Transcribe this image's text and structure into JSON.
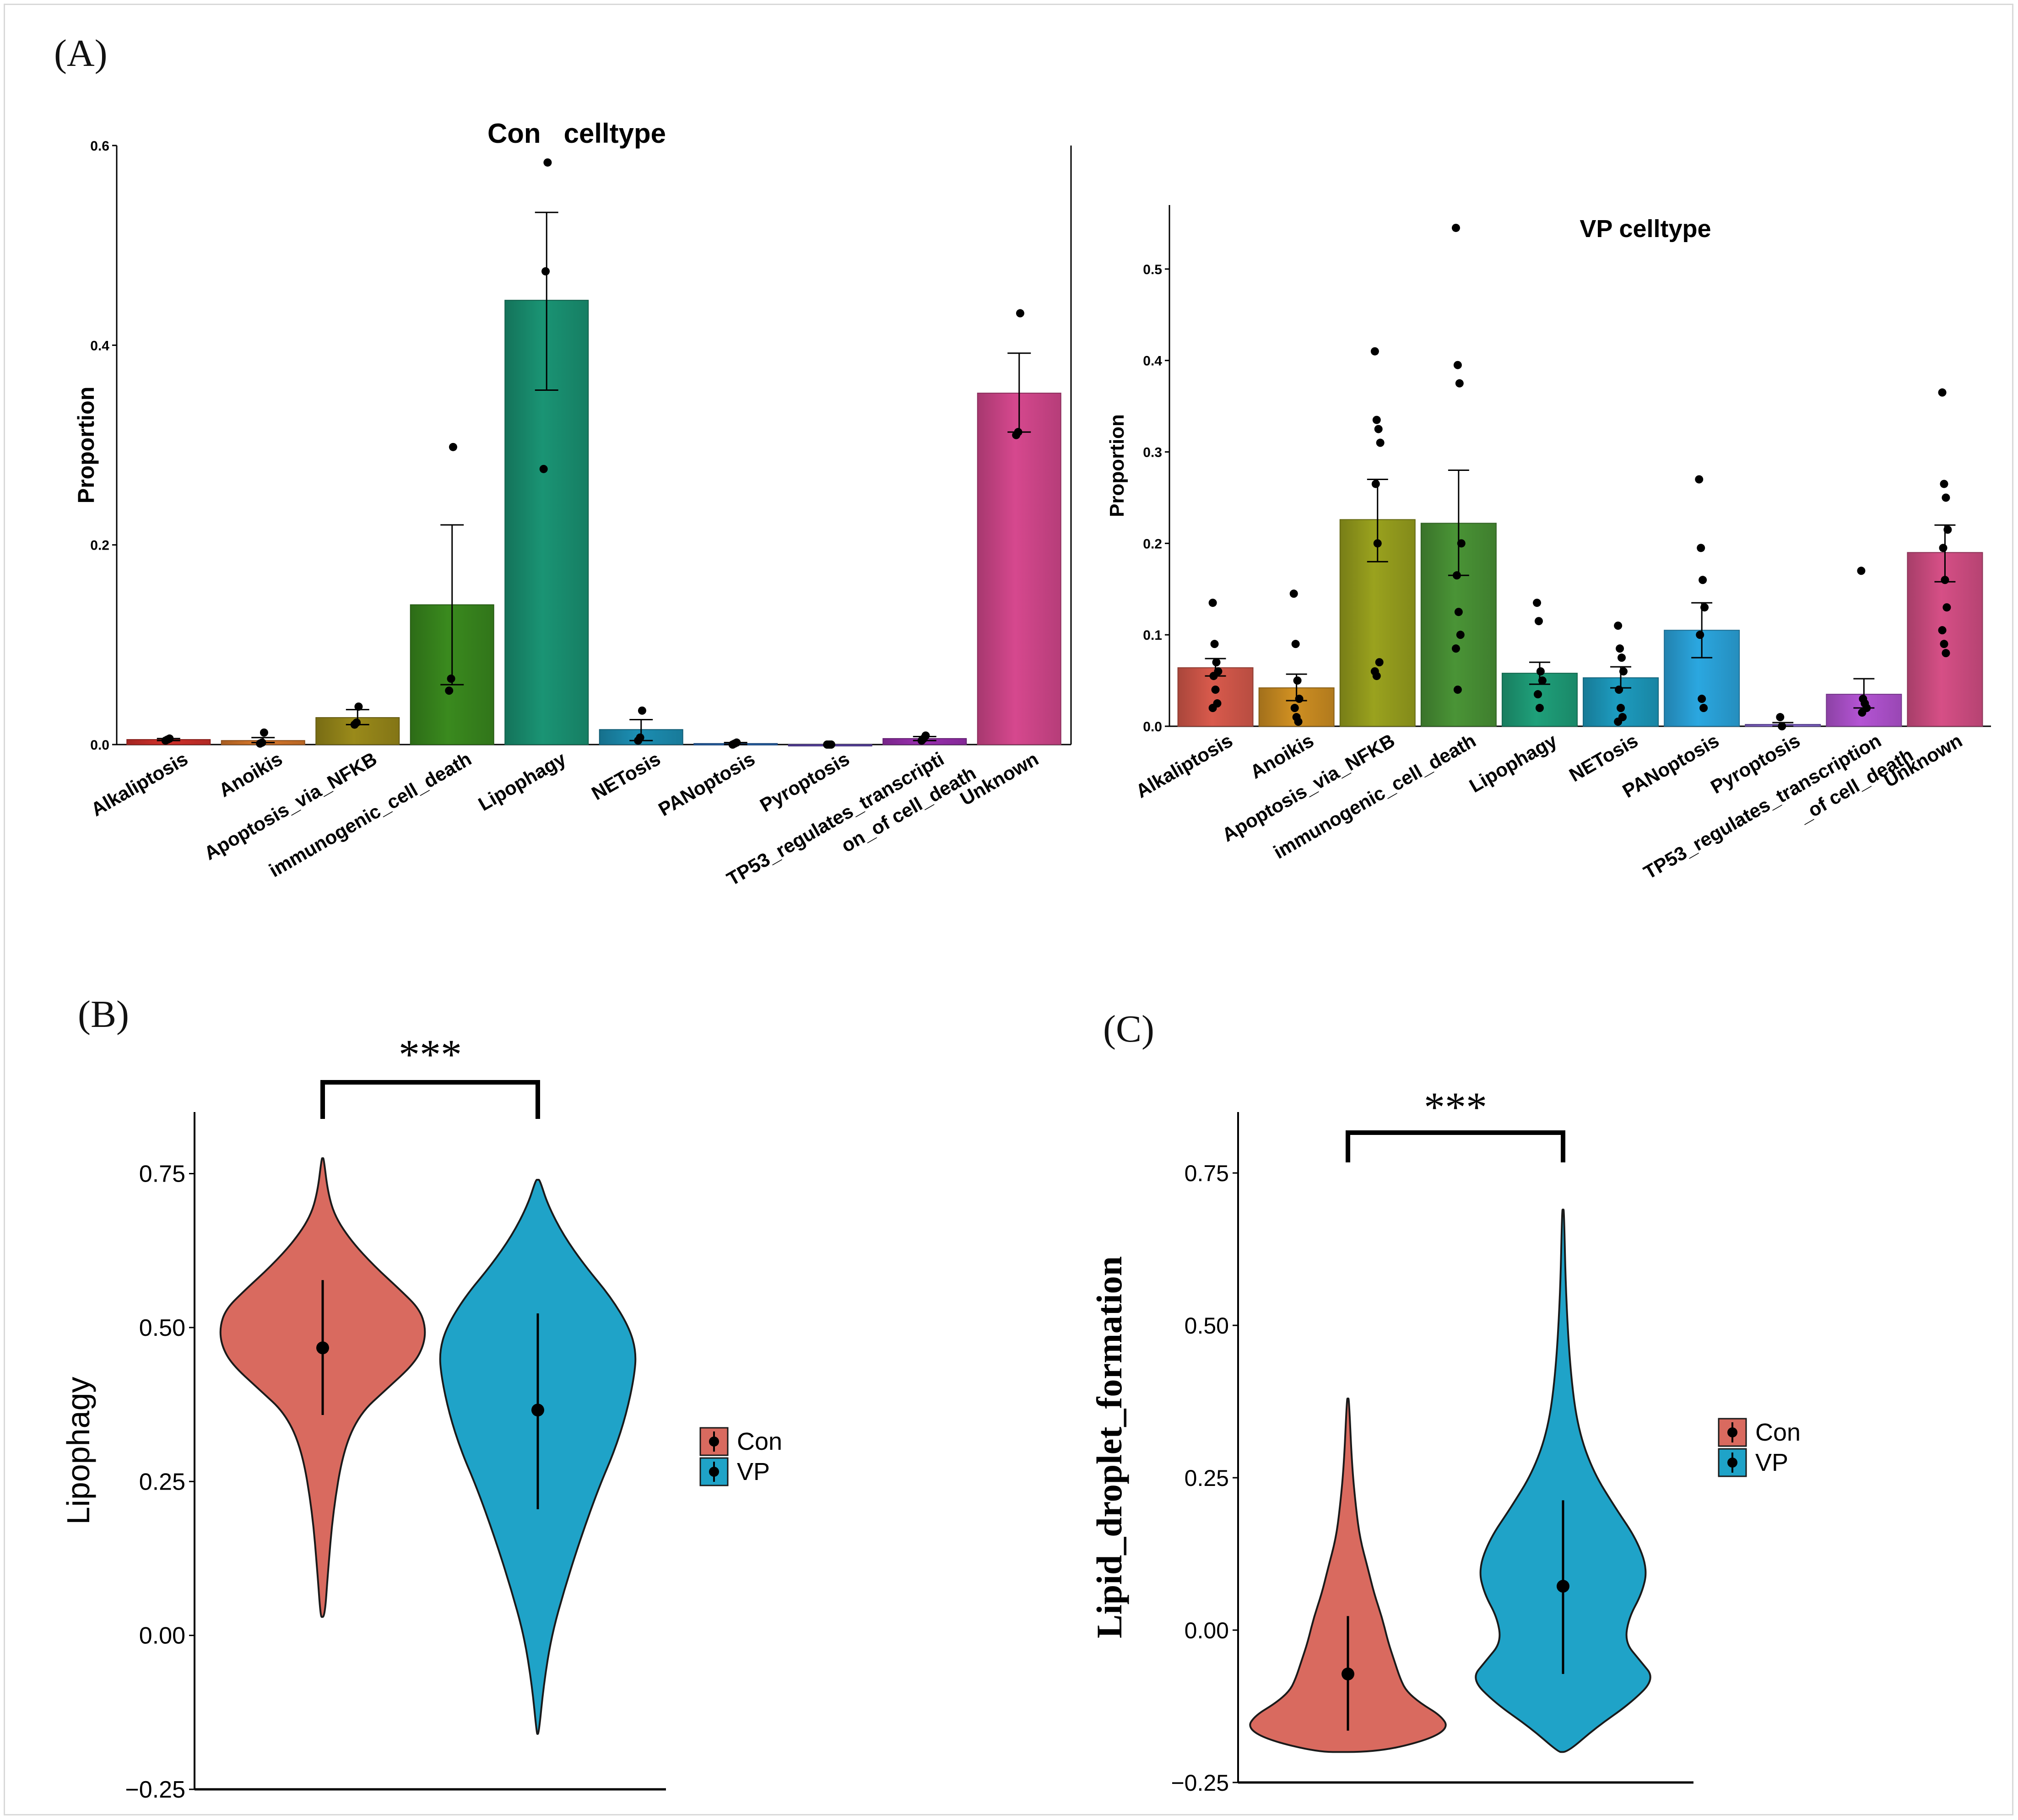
{
  "panel_labels": {
    "a": "(A)",
    "b": "(B)",
    "c": "(C)"
  },
  "chart_data": [
    {
      "id": "con-celltype",
      "type": "bar",
      "title": "Con   celltype",
      "xlabel": "",
      "ylabel": "Proportion",
      "ylim": [
        0,
        0.6
      ],
      "yticks": [
        "0.0",
        "0.2",
        "0.4",
        "0.6"
      ],
      "ytick_values": [
        0,
        0.2,
        0.4,
        0.6
      ],
      "categories": [
        "Alkaliptosis",
        "Anoikis",
        "Apoptosis_via_NFKB",
        "immunogenic_cell_death",
        "Lipophagy",
        "NETosis",
        "PANoptosis",
        "Pyroptosis",
        "TP53_regulates_transcripti\non_of cell_death",
        "Unknown"
      ],
      "category_labels": [
        [
          "Alkaliptosis"
        ],
        [
          "Anoikis"
        ],
        [
          "Apoptosis_via_NFKB"
        ],
        [
          "immunogenic_cell_death"
        ],
        [
          "Lipophagy"
        ],
        [
          "NETosis"
        ],
        [
          "PANoptosis"
        ],
        [
          "Pyroptosis"
        ],
        [
          "TP53_regulates_transcripti",
          "on_of cell_death"
        ],
        [
          "Unknown"
        ]
      ],
      "values": [
        0.005,
        0.004,
        0.027,
        0.14,
        0.445,
        0.015,
        0.001,
        0.0,
        0.006,
        0.352
      ],
      "err_low": [
        0.004,
        0.002,
        0.02,
        0.06,
        0.355,
        0.004,
        0.0,
        0.0,
        0.004,
        0.313
      ],
      "err_high": [
        0.006,
        0.007,
        0.035,
        0.22,
        0.533,
        0.025,
        0.002,
        0.0,
        0.008,
        0.392
      ],
      "points": [
        [
          0.004,
          0.005,
          0.006
        ],
        [
          0.001,
          0.002,
          0.012
        ],
        [
          0.02,
          0.022,
          0.038
        ],
        [
          0.054,
          0.066,
          0.298
        ],
        [
          0.276,
          0.474,
          0.583
        ],
        [
          0.004,
          0.007,
          0.034
        ],
        [
          0.0,
          0.001,
          0.002
        ],
        [
          0.0,
          0.0,
          0.0
        ],
        [
          0.004,
          0.006,
          0.009
        ],
        [
          0.31,
          0.313,
          0.432
        ]
      ],
      "colors": [
        "#d1302a",
        "#d9782a",
        "#9a8a1a",
        "#3a8a1e",
        "#1a9474",
        "#1c8fb4",
        "#2b6fc0",
        "#6a4fc0",
        "#9a2fb0",
        "#d6488e"
      ]
    },
    {
      "id": "vp-celltype",
      "type": "bar",
      "title": "VP celltype",
      "xlabel": "",
      "ylabel": "Proportion",
      "ylim": [
        0,
        0.57
      ],
      "yticks": [
        "0.0",
        "0.1",
        "0.2",
        "0.3",
        "0.4",
        "0.5"
      ],
      "ytick_values": [
        0,
        0.1,
        0.2,
        0.3,
        0.4,
        0.5
      ],
      "categories": [
        "Alkaliptosis",
        "Anoikis",
        "Apoptosis_via_NFKB",
        "immunogenic_cell_death",
        "Lipophagy",
        "NETosis",
        "PANoptosis",
        "Pyroptosis",
        "TP53_regulates_transcription\n_of cell_death",
        "Unknown"
      ],
      "category_labels": [
        [
          "Alkaliptosis"
        ],
        [
          "Anoikis"
        ],
        [
          "Apoptosis_via_NFKB"
        ],
        [
          "immunogenic_cell_death"
        ],
        [
          "Lipophagy"
        ],
        [
          "NETosis"
        ],
        [
          "PANoptosis"
        ],
        [
          "Pyroptosis"
        ],
        [
          "TP53_regulates_transcription",
          "_of cell_death"
        ],
        [
          "Unknown"
        ]
      ],
      "values": [
        0.064,
        0.042,
        0.226,
        0.222,
        0.058,
        0.053,
        0.105,
        0.002,
        0.035,
        0.19
      ],
      "err_low": [
        0.055,
        0.028,
        0.18,
        0.165,
        0.046,
        0.042,
        0.075,
        0.0,
        0.02,
        0.158
      ],
      "err_high": [
        0.074,
        0.057,
        0.27,
        0.28,
        0.07,
        0.065,
        0.135,
        0.004,
        0.052,
        0.22
      ],
      "points": [
        [
          0.135,
          0.09,
          0.07,
          0.06,
          0.055,
          0.04,
          0.025,
          0.02
        ],
        [
          0.145,
          0.09,
          0.05,
          0.03,
          0.02,
          0.01,
          0.005
        ],
        [
          0.41,
          0.335,
          0.325,
          0.31,
          0.265,
          0.2,
          0.07,
          0.06,
          0.055
        ],
        [
          0.545,
          0.395,
          0.375,
          0.2,
          0.165,
          0.125,
          0.1,
          0.085,
          0.04
        ],
        [
          0.135,
          0.115,
          0.06,
          0.05,
          0.035,
          0.02
        ],
        [
          0.11,
          0.085,
          0.075,
          0.06,
          0.04,
          0.02,
          0.01,
          0.005
        ],
        [
          0.27,
          0.195,
          0.16,
          0.13,
          0.1,
          0.03,
          0.02
        ],
        [
          0.01,
          0.0
        ],
        [
          0.17,
          0.03,
          0.025,
          0.02,
          0.015
        ],
        [
          0.365,
          0.265,
          0.25,
          0.215,
          0.195,
          0.16,
          0.13,
          0.105,
          0.09,
          0.08
        ]
      ],
      "colors": [
        "#d95a4c",
        "#d09022",
        "#9aa21e",
        "#4a9436",
        "#1fa07a",
        "#1d9cc0",
        "#2ba7e0",
        "#8a6ad8",
        "#b454d4",
        "#d64f86"
      ]
    },
    {
      "id": "lipophagy-violin",
      "type": "violin",
      "title": "",
      "xlabel": "",
      "ylabel": "Lipophagy",
      "ylim": [
        -0.25,
        0.85
      ],
      "yticks": [
        "0.75",
        "0.50",
        "0.25",
        "0.00",
        "−0.25"
      ],
      "ytick_values": [
        0.75,
        0.5,
        0.25,
        0.0,
        -0.25
      ],
      "significance": "***",
      "legend": [
        "Con",
        "VP"
      ],
      "colors": [
        "#d96a5f",
        "#1fa3c8"
      ],
      "series": [
        {
          "name": "Con",
          "median": 0.467,
          "q_low": 0.358,
          "q_high": 0.577,
          "y_min": 0.03,
          "y_max": 0.775,
          "density_y": [
            0.03,
            0.1,
            0.2,
            0.3,
            0.36,
            0.4,
            0.44,
            0.47,
            0.5,
            0.53,
            0.56,
            0.6,
            0.64,
            0.68,
            0.72,
            0.775
          ],
          "density_w": [
            0.02,
            0.05,
            0.1,
            0.2,
            0.36,
            0.62,
            0.88,
            0.98,
            1.0,
            0.94,
            0.76,
            0.5,
            0.28,
            0.12,
            0.05,
            0.01
          ]
        },
        {
          "name": "VP",
          "median": 0.366,
          "q_low": 0.205,
          "q_high": 0.523,
          "y_min": -0.16,
          "y_max": 0.74,
          "density_y": [
            -0.16,
            -0.08,
            0.0,
            0.08,
            0.16,
            0.24,
            0.3,
            0.36,
            0.42,
            0.46,
            0.5,
            0.55,
            0.6,
            0.65,
            0.7,
            0.74
          ],
          "density_w": [
            0.01,
            0.06,
            0.14,
            0.28,
            0.44,
            0.62,
            0.78,
            0.9,
            0.98,
            1.0,
            0.93,
            0.74,
            0.48,
            0.26,
            0.1,
            0.02
          ]
        }
      ]
    },
    {
      "id": "lipid-droplet-violin",
      "type": "violin",
      "title": "",
      "xlabel": "",
      "ylabel": "Lipid_droplet_formation",
      "ylim": [
        -0.25,
        0.85
      ],
      "yticks": [
        "0.75",
        "0.50",
        "0.25",
        "0.00",
        "−0.25"
      ],
      "ytick_values": [
        0.75,
        0.5,
        0.25,
        0.0,
        -0.25
      ],
      "significance": "***",
      "legend": [
        "Con",
        "VP"
      ],
      "colors": [
        "#d96a5f",
        "#1fa3c8"
      ],
      "series": [
        {
          "name": "Con",
          "median": -0.072,
          "q_low": -0.165,
          "q_high": 0.023,
          "y_min": -0.2,
          "y_max": 0.38,
          "density_y": [
            -0.2,
            -0.18,
            -0.16,
            -0.14,
            -0.12,
            -0.1,
            -0.08,
            -0.05,
            -0.02,
            0.02,
            0.06,
            0.1,
            0.15,
            0.2,
            0.27,
            0.38
          ],
          "density_w": [
            0.3,
            0.8,
            1.0,
            0.92,
            0.72,
            0.58,
            0.52,
            0.46,
            0.4,
            0.34,
            0.26,
            0.2,
            0.12,
            0.08,
            0.04,
            0.01
          ]
        },
        {
          "name": "VP",
          "median": 0.072,
          "q_low": -0.072,
          "q_high": 0.213,
          "y_min": -0.2,
          "y_max": 0.69,
          "density_y": [
            -0.2,
            -0.16,
            -0.12,
            -0.08,
            -0.05,
            -0.02,
            0.02,
            0.06,
            0.1,
            0.15,
            0.2,
            0.26,
            0.33,
            0.42,
            0.55,
            0.69
          ],
          "density_w": [
            0.05,
            0.35,
            0.72,
            0.98,
            0.82,
            0.66,
            0.7,
            0.84,
            0.9,
            0.78,
            0.56,
            0.32,
            0.16,
            0.08,
            0.03,
            0.01
          ]
        }
      ]
    }
  ]
}
